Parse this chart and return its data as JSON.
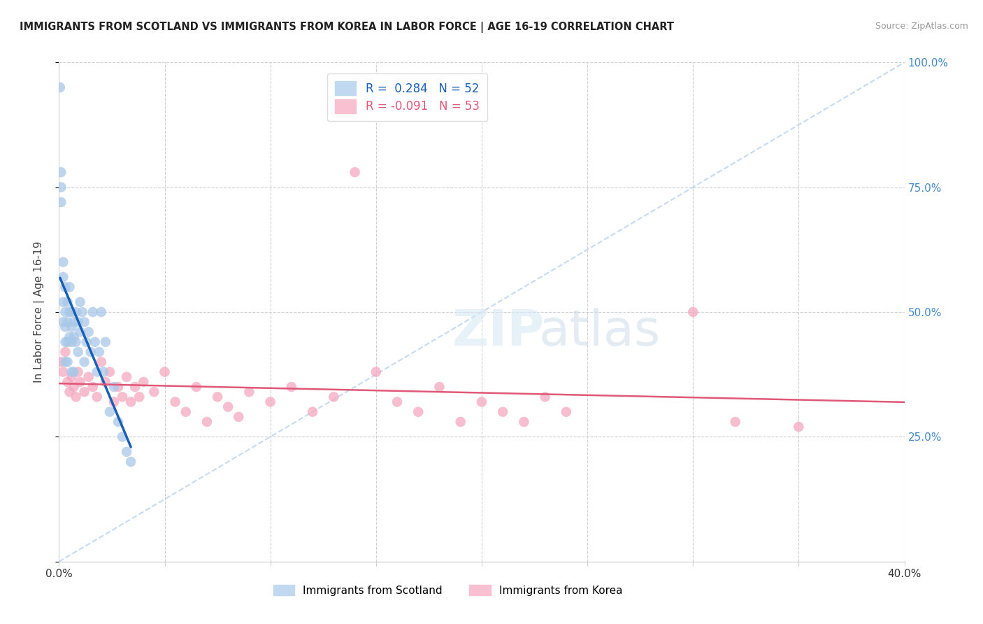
{
  "title": "IMMIGRANTS FROM SCOTLAND VS IMMIGRANTS FROM KOREA IN LABOR FORCE | AGE 16-19 CORRELATION CHART",
  "source": "Source: ZipAtlas.com",
  "ylabel_label": "In Labor Force | Age 16-19",
  "r_scotland": 0.284,
  "n_scotland": 52,
  "r_korea": -0.091,
  "n_korea": 53,
  "legend_label_scotland": "Immigrants from Scotland",
  "legend_label_korea": "Immigrants from Korea",
  "scotland_color": "#a8c8e8",
  "korea_color": "#f4a8c0",
  "scotland_line_color": "#1a5fb4",
  "korea_line_color": "#e05878",
  "ref_line_color": "#c0d8f0",
  "xmin": 0.0,
  "xmax": 0.4,
  "ymin": 0.0,
  "ymax": 1.0,
  "scotland_x": [
    0.0005,
    0.001,
    0.001,
    0.001,
    0.002,
    0.002,
    0.002,
    0.002,
    0.003,
    0.003,
    0.003,
    0.003,
    0.003,
    0.004,
    0.004,
    0.004,
    0.004,
    0.005,
    0.005,
    0.005,
    0.006,
    0.006,
    0.006,
    0.006,
    0.007,
    0.007,
    0.007,
    0.008,
    0.008,
    0.009,
    0.009,
    0.01,
    0.01,
    0.011,
    0.012,
    0.012,
    0.013,
    0.014,
    0.015,
    0.016,
    0.017,
    0.018,
    0.019,
    0.02,
    0.021,
    0.022,
    0.024,
    0.026,
    0.028,
    0.03,
    0.032,
    0.034
  ],
  "scotland_y": [
    0.95,
    0.78,
    0.75,
    0.72,
    0.6,
    0.57,
    0.52,
    0.48,
    0.55,
    0.5,
    0.47,
    0.44,
    0.4,
    0.52,
    0.48,
    0.44,
    0.4,
    0.55,
    0.5,
    0.45,
    0.5,
    0.47,
    0.44,
    0.38,
    0.48,
    0.45,
    0.38,
    0.5,
    0.44,
    0.48,
    0.42,
    0.52,
    0.46,
    0.5,
    0.48,
    0.4,
    0.44,
    0.46,
    0.42,
    0.5,
    0.44,
    0.38,
    0.42,
    0.5,
    0.38,
    0.44,
    0.3,
    0.35,
    0.28,
    0.25,
    0.22,
    0.2
  ],
  "korea_x": [
    0.001,
    0.002,
    0.003,
    0.004,
    0.005,
    0.006,
    0.007,
    0.008,
    0.009,
    0.01,
    0.012,
    0.014,
    0.016,
    0.018,
    0.02,
    0.022,
    0.024,
    0.026,
    0.028,
    0.03,
    0.032,
    0.034,
    0.036,
    0.038,
    0.04,
    0.045,
    0.05,
    0.055,
    0.06,
    0.065,
    0.07,
    0.075,
    0.08,
    0.085,
    0.09,
    0.1,
    0.11,
    0.12,
    0.13,
    0.14,
    0.15,
    0.16,
    0.17,
    0.18,
    0.19,
    0.2,
    0.21,
    0.22,
    0.23,
    0.24,
    0.3,
    0.32,
    0.35
  ],
  "korea_y": [
    0.4,
    0.38,
    0.42,
    0.36,
    0.34,
    0.37,
    0.35,
    0.33,
    0.38,
    0.36,
    0.34,
    0.37,
    0.35,
    0.33,
    0.4,
    0.36,
    0.38,
    0.32,
    0.35,
    0.33,
    0.37,
    0.32,
    0.35,
    0.33,
    0.36,
    0.34,
    0.38,
    0.32,
    0.3,
    0.35,
    0.28,
    0.33,
    0.31,
    0.29,
    0.34,
    0.32,
    0.35,
    0.3,
    0.33,
    0.78,
    0.38,
    0.32,
    0.3,
    0.35,
    0.28,
    0.32,
    0.3,
    0.28,
    0.33,
    0.3,
    0.5,
    0.28,
    0.27
  ]
}
